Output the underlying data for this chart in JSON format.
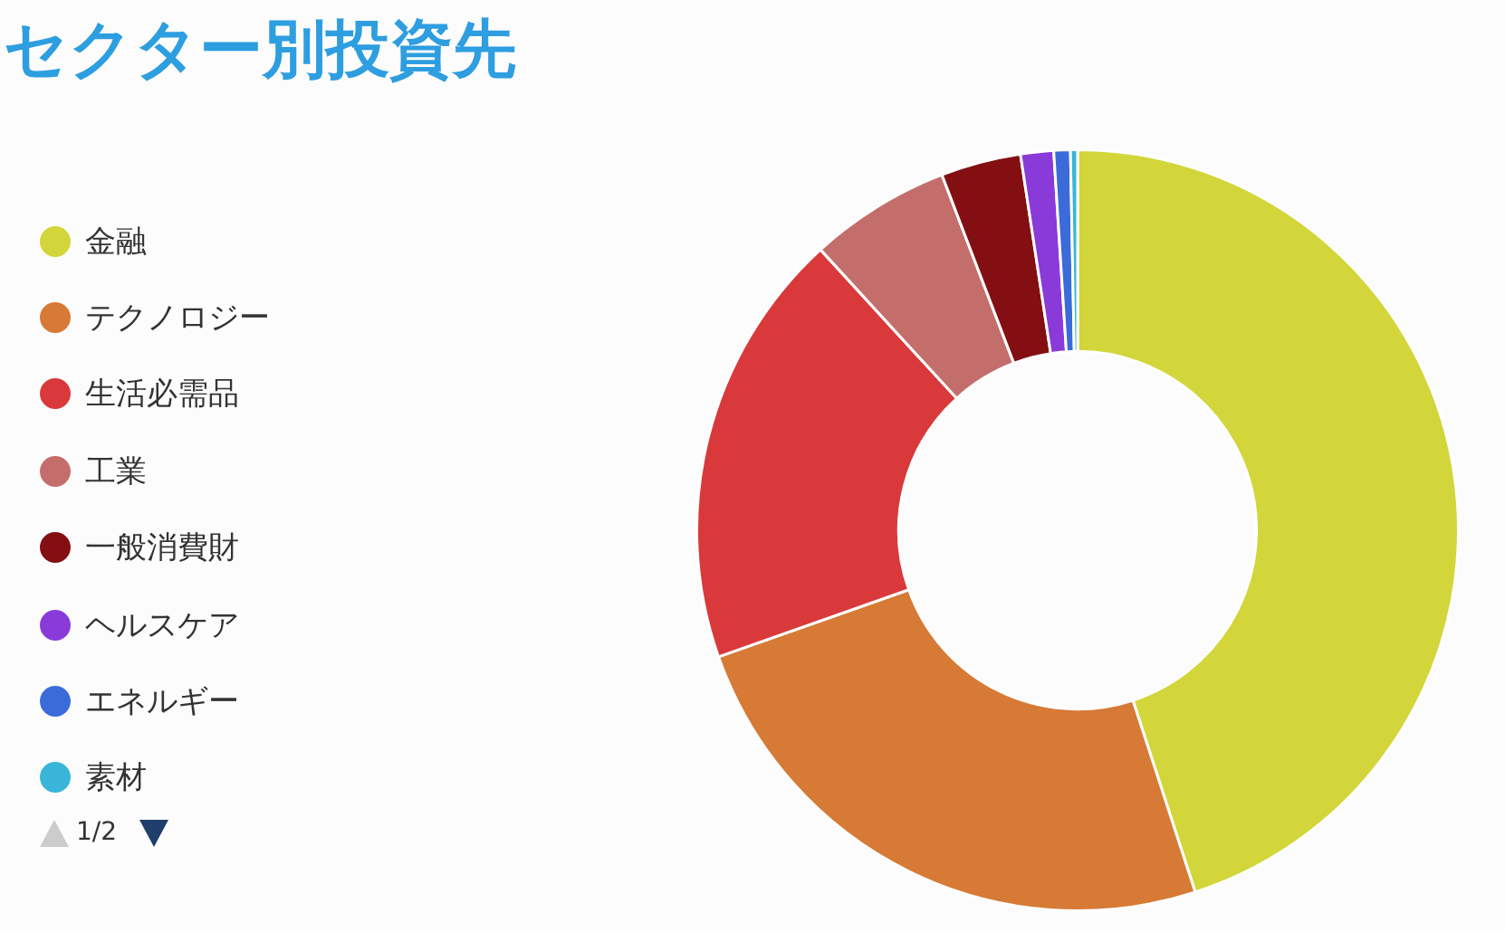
{
  "chart_data": {
    "type": "donut",
    "title": "セクター別投資先",
    "categories": [
      "金融",
      "テクノロジー",
      "生活必需品",
      "工業",
      "一般消費財",
      "ヘルスケア",
      "エネルギー",
      "素材"
    ],
    "values": [
      45.0,
      24.6,
      18.6,
      6.0,
      3.4,
      1.4,
      0.7,
      0.3
    ],
    "colors": [
      "#d2d63a",
      "#d67a35",
      "#d9393a",
      "#c46e6c",
      "#830f12",
      "#8a3ad9",
      "#3a6bd9",
      "#3ab5da"
    ],
    "legend": "left",
    "annotations": [
      "1/2"
    ]
  }
}
